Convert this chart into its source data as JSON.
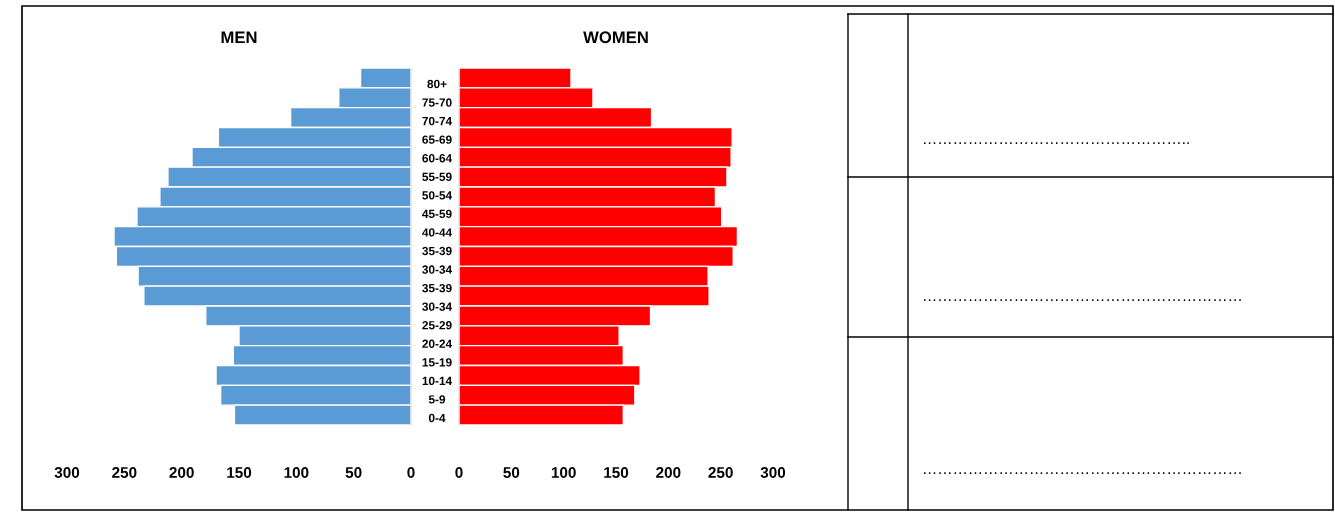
{
  "chart_data": [
    {
      "type": "bar",
      "orientation": "horizontal",
      "title": "MEN",
      "categories": [
        null,
        null,
        null,
        null,
        null,
        null,
        null,
        null,
        null,
        null,
        null,
        null,
        null,
        null,
        null,
        null,
        null,
        null
      ],
      "values": [
        44,
        63,
        105,
        168,
        191,
        212,
        219,
        239,
        259,
        257,
        238,
        233,
        179,
        150,
        155,
        170,
        166,
        154
      ],
      "color": "#5b9bd5",
      "xlim": [
        300,
        0
      ],
      "xticks": [
        300,
        250,
        200,
        150,
        100,
        50,
        0
      ],
      "grid": false,
      "annotations": [
        "80+",
        "75-70",
        "70-74",
        "65-69",
        "60-64",
        "55-59",
        "50-54",
        "45-59",
        "40-44",
        "35-39",
        "30-34",
        "35-39",
        "30-34",
        "25-29",
        "20-24",
        "15-19",
        "10-14",
        "5-9",
        "0-4"
      ]
    },
    {
      "type": "bar",
      "orientation": "horizontal",
      "title": "WOMEN",
      "categories": [
        null,
        null,
        null,
        null,
        null,
        null,
        null,
        null,
        null,
        null,
        null,
        null,
        null,
        null,
        null,
        null,
        null,
        null
      ],
      "values": [
        107,
        128,
        184,
        261,
        260,
        256,
        245,
        251,
        266,
        262,
        238,
        239,
        183,
        153,
        157,
        173,
        168,
        157
      ],
      "color": "#ff0000",
      "xlim": [
        0,
        300
      ],
      "xticks": [
        0,
        50,
        100,
        150,
        200,
        250,
        300
      ],
      "grid": false
    },
    {
      "type": "other",
      "annotations": [
        "……………………………………………..",
        "………………………………………………………",
        "………………………………………………………"
      ]
    }
  ]
}
